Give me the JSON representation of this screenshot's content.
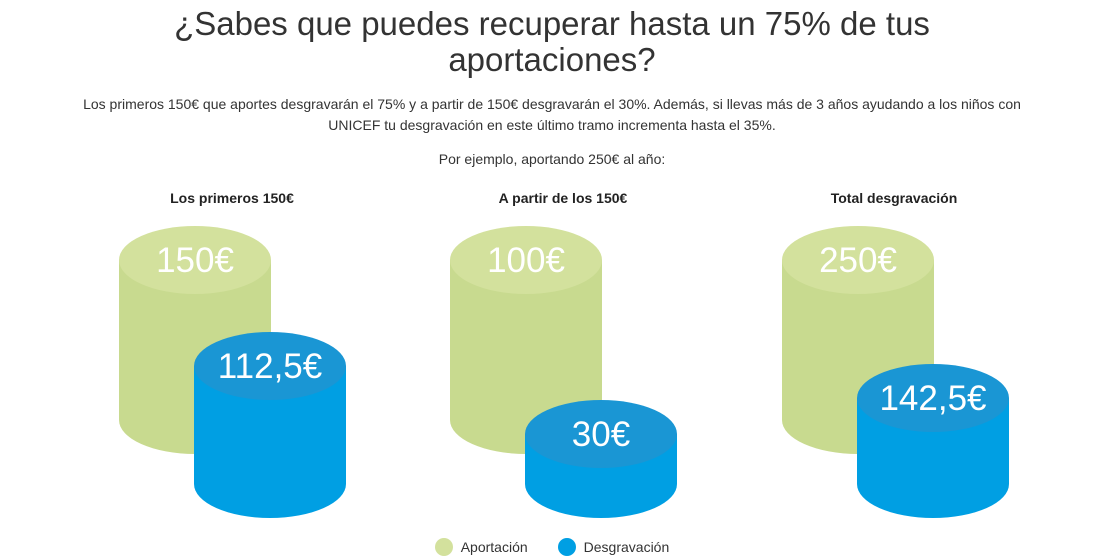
{
  "headline": {
    "line1": "¿Sabes que puedes recuperar hasta un 75% de tus",
    "line2": "aportaciones?"
  },
  "intro": "Los primeros 150€ que aportes desgravarán el 75% y a partir de 150€ desgravarán el 30%. Además, si llevas más de 3 años ayudando a los niños con UNICEF tu desgravación en este último tramo incrementa hasta el 35%.",
  "example": "Por ejemplo, aportando 250€ al año:",
  "colors": {
    "aportacion": "#d3e19d",
    "aportacion_side": "#c8da8f",
    "aportacion_top": "#d9e6a7",
    "desgravacion": "#009fe3",
    "desgravacion_top": "#1a96d4"
  },
  "chart_data": {
    "type": "bar",
    "style": "cylinder",
    "categories": [
      "Los primeros 150€",
      "A partir de los 150€",
      "Total desgravación"
    ],
    "series": [
      {
        "name": "Aportación",
        "values": [
          150,
          100,
          250
        ],
        "labels": [
          "150€",
          "100€",
          "250€"
        ]
      },
      {
        "name": "Desgravación",
        "values": [
          112.5,
          30,
          142.5
        ],
        "labels": [
          "112,5€",
          "30€",
          "142,5€"
        ]
      }
    ],
    "legend": "bottom-center"
  },
  "legend": {
    "aportacion": "Aportación",
    "desgravacion": "Desgravación"
  }
}
